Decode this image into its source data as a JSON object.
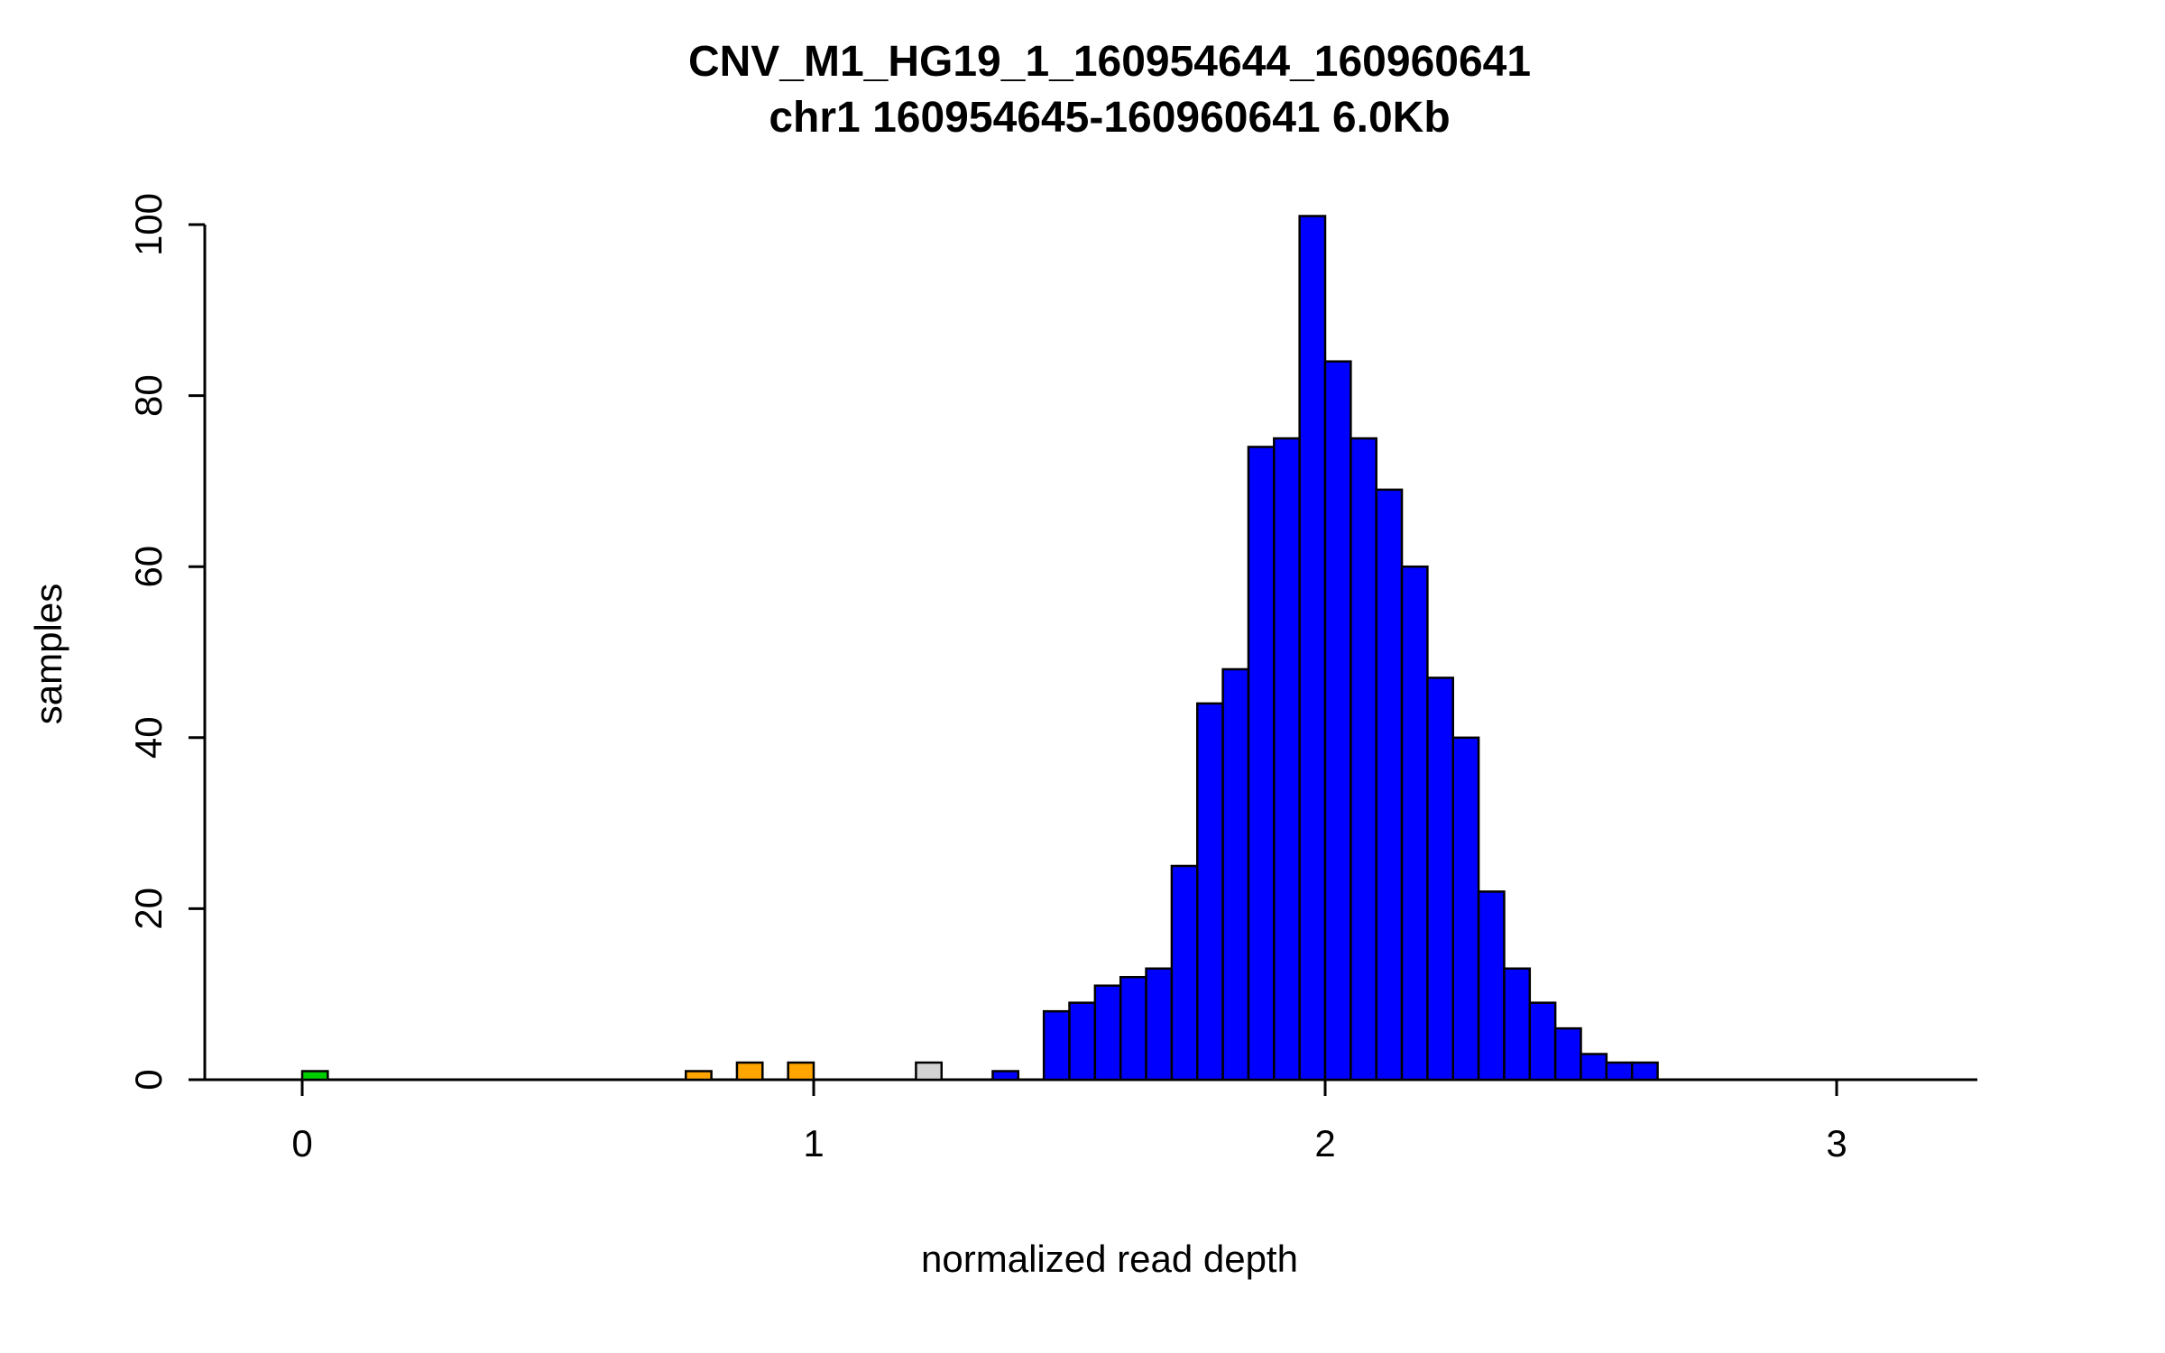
{
  "chart_data": {
    "type": "bar",
    "title": "CNV_M1_HG19_1_160954644_160960641",
    "subtitle": "chr1 160954645-160960641 6.0Kb",
    "xlabel": "normalized read depth",
    "ylabel": "samples",
    "xlim": [
      0,
      3.3
    ],
    "ylim": [
      0,
      100
    ],
    "x_ticks": [
      0,
      1,
      2,
      3
    ],
    "y_ticks": [
      0,
      20,
      40,
      60,
      80,
      100
    ],
    "bin_width": 0.05,
    "grid": false,
    "legend": "none",
    "colors": {
      "blue": "#0000FF",
      "orange": "#FFA500",
      "green": "#00CD00",
      "gray": "#D3D3D3",
      "axis": "#000000"
    },
    "bins": [
      {
        "x": 0.0,
        "count": 1,
        "color": "green"
      },
      {
        "x": 0.75,
        "count": 1,
        "color": "orange"
      },
      {
        "x": 0.85,
        "count": 2,
        "color": "orange"
      },
      {
        "x": 0.95,
        "count": 2,
        "color": "orange"
      },
      {
        "x": 1.2,
        "count": 2,
        "color": "gray"
      },
      {
        "x": 1.35,
        "count": 1,
        "color": "blue"
      },
      {
        "x": 1.45,
        "count": 8,
        "color": "blue"
      },
      {
        "x": 1.5,
        "count": 9,
        "color": "blue"
      },
      {
        "x": 1.55,
        "count": 11,
        "color": "blue"
      },
      {
        "x": 1.6,
        "count": 12,
        "color": "blue"
      },
      {
        "x": 1.65,
        "count": 13,
        "color": "blue"
      },
      {
        "x": 1.7,
        "count": 25,
        "color": "blue"
      },
      {
        "x": 1.75,
        "count": 44,
        "color": "blue"
      },
      {
        "x": 1.8,
        "count": 48,
        "color": "blue"
      },
      {
        "x": 1.85,
        "count": 74,
        "color": "blue"
      },
      {
        "x": 1.9,
        "count": 75,
        "color": "blue"
      },
      {
        "x": 1.95,
        "count": 101,
        "color": "blue"
      },
      {
        "x": 2.0,
        "count": 84,
        "color": "blue"
      },
      {
        "x": 2.05,
        "count": 75,
        "color": "blue"
      },
      {
        "x": 2.1,
        "count": 69,
        "color": "blue"
      },
      {
        "x": 2.15,
        "count": 60,
        "color": "blue"
      },
      {
        "x": 2.2,
        "count": 47,
        "color": "blue"
      },
      {
        "x": 2.25,
        "count": 40,
        "color": "blue"
      },
      {
        "x": 2.3,
        "count": 22,
        "color": "blue"
      },
      {
        "x": 2.35,
        "count": 13,
        "color": "blue"
      },
      {
        "x": 2.4,
        "count": 9,
        "color": "blue"
      },
      {
        "x": 2.45,
        "count": 6,
        "color": "blue"
      },
      {
        "x": 2.5,
        "count": 3,
        "color": "blue"
      },
      {
        "x": 2.55,
        "count": 2,
        "color": "blue"
      },
      {
        "x": 2.6,
        "count": 2,
        "color": "blue"
      }
    ]
  }
}
